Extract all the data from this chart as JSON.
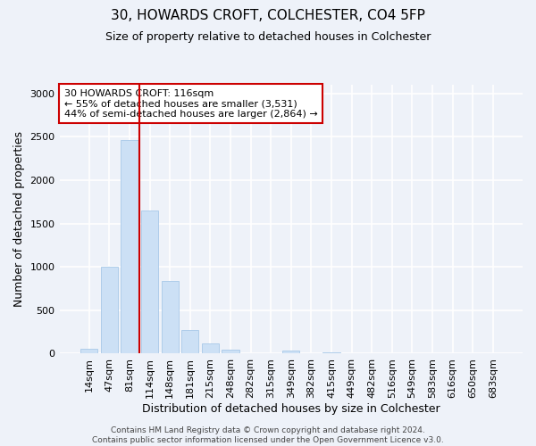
{
  "title": "30, HOWARDS CROFT, COLCHESTER, CO4 5FP",
  "subtitle": "Size of property relative to detached houses in Colchester",
  "xlabel": "Distribution of detached houses by size in Colchester",
  "ylabel": "Number of detached properties",
  "bar_labels": [
    "14sqm",
    "47sqm",
    "81sqm",
    "114sqm",
    "148sqm",
    "181sqm",
    "215sqm",
    "248sqm",
    "282sqm",
    "315sqm",
    "349sqm",
    "382sqm",
    "415sqm",
    "449sqm",
    "482sqm",
    "516sqm",
    "549sqm",
    "583sqm",
    "616sqm",
    "650sqm",
    "683sqm"
  ],
  "bar_values": [
    55,
    1000,
    2460,
    1650,
    835,
    270,
    120,
    45,
    5,
    5,
    35,
    5,
    20,
    0,
    0,
    0,
    0,
    0,
    0,
    0,
    0
  ],
  "bar_color": "#cce0f5",
  "bar_edge_color": "#a8c8e8",
  "vline_x_index": 2.5,
  "vline_color": "#cc0000",
  "annotation_box_edge_color": "#cc0000",
  "annotation_title": "30 HOWARDS CROFT: 116sqm",
  "annotation_line1": "← 55% of detached houses are smaller (3,531)",
  "annotation_line2": "44% of semi-detached houses are larger (2,864) →",
  "ylim": [
    0,
    3100
  ],
  "yticks": [
    0,
    500,
    1000,
    1500,
    2000,
    2500,
    3000
  ],
  "footer1": "Contains HM Land Registry data © Crown copyright and database right 2024.",
  "footer2": "Contains public sector information licensed under the Open Government Licence v3.0.",
  "bg_color": "#eef2f9",
  "plot_bg_color": "#eef2f9",
  "grid_color": "#ffffff",
  "title_fontsize": 11,
  "subtitle_fontsize": 9,
  "axis_label_fontsize": 9,
  "tick_fontsize": 8,
  "annotation_fontsize": 8,
  "footer_fontsize": 6.5
}
